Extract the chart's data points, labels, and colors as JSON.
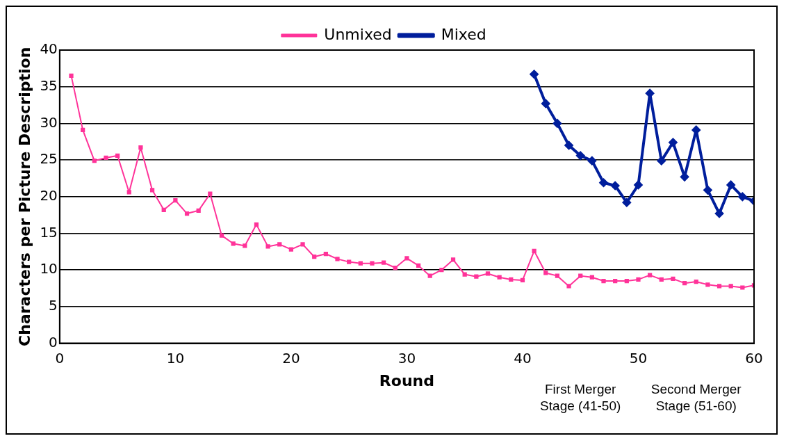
{
  "chart_data": {
    "type": "line",
    "xlabel": "Round",
    "ylabel": "Characters per Picture Description",
    "xlim": [
      0,
      60
    ],
    "xticks": [
      0,
      10,
      20,
      30,
      40,
      50,
      60
    ],
    "ylim": [
      0,
      40
    ],
    "yticks": [
      0,
      5,
      10,
      15,
      20,
      25,
      30,
      35,
      40
    ],
    "grid": "y",
    "legend": "top",
    "line_style": "solid",
    "series": [
      {
        "name": "Unmixed",
        "color": "#ff3399",
        "marker": "square",
        "x": [
          1,
          2,
          3,
          4,
          5,
          6,
          7,
          8,
          9,
          10,
          11,
          12,
          13,
          14,
          15,
          16,
          17,
          18,
          19,
          20,
          21,
          22,
          23,
          24,
          25,
          26,
          27,
          28,
          29,
          30,
          31,
          32,
          33,
          34,
          35,
          36,
          37,
          38,
          39,
          40,
          41,
          42,
          43,
          44,
          45,
          46,
          47,
          48,
          49,
          50,
          51,
          52,
          53,
          54,
          55,
          56,
          57,
          58,
          59,
          60
        ],
        "values": [
          36.5,
          29.1,
          24.9,
          25.3,
          25.6,
          20.6,
          26.7,
          20.9,
          18.2,
          19.5,
          17.7,
          18.1,
          20.4,
          14.7,
          13.6,
          13.3,
          16.2,
          13.2,
          13.5,
          12.8,
          13.5,
          11.8,
          12.2,
          11.5,
          11.1,
          10.9,
          10.9,
          11.0,
          10.3,
          11.6,
          10.6,
          9.2,
          10.0,
          11.4,
          9.4,
          9.1,
          9.5,
          9.0,
          8.7,
          8.6,
          12.6,
          9.6,
          9.2,
          7.8,
          9.2,
          9.0,
          8.5,
          8.5,
          8.5,
          8.7,
          9.3,
          8.7,
          8.8,
          8.2,
          8.4,
          8.0,
          7.8,
          7.8,
          7.6,
          7.9
        ]
      },
      {
        "name": "Mixed",
        "color": "#001e9c",
        "marker": "diamond",
        "x": [
          41,
          42,
          43,
          44,
          45,
          46,
          47,
          48,
          49,
          50,
          51,
          52,
          53,
          54,
          55,
          56,
          57,
          58,
          59,
          60
        ],
        "values": [
          36.7,
          32.7,
          30.0,
          27.0,
          25.6,
          24.9,
          21.9,
          21.5,
          19.2,
          21.6,
          34.1,
          24.9,
          27.4,
          22.7,
          29.1,
          20.9,
          17.7,
          21.6,
          20.0,
          19.4
        ]
      }
    ],
    "annotations": [
      "First Merger Stage (41-50)",
      "Second Merger Stage (51-60)"
    ]
  }
}
